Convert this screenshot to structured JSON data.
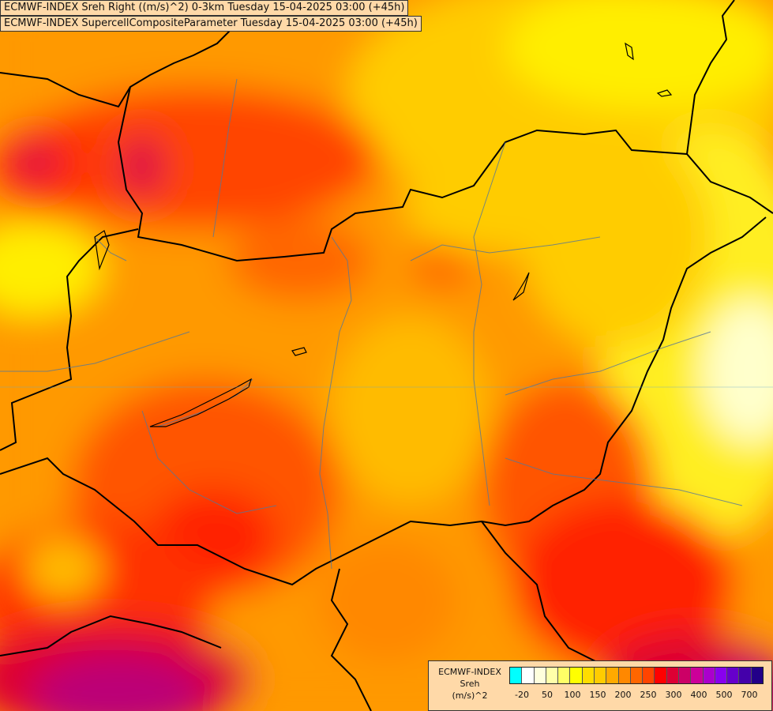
{
  "titles": {
    "line1": "ECMWF-INDEX Sreh Right ((m/s)^2) 0-3km Tuesday 15-04-2025 03:00 (+45h)",
    "line2": "ECMWF-INDEX SupercellCompositeParameter Tuesday 15-04-2025 03:00 (+45h)"
  },
  "legend": {
    "label_line1": "ECMWF-INDEX",
    "label_line2": "Sreh",
    "label_line3": "(m/s)^2",
    "colors": [
      "#00ffff",
      "#ffffff",
      "#ffffdd",
      "#ffffaa",
      "#ffff66",
      "#ffff00",
      "#ffdd00",
      "#ffcc00",
      "#ffaa00",
      "#ff8800",
      "#ff6600",
      "#ff4400",
      "#ff0000",
      "#dd0033",
      "#cc0066",
      "#cc0099",
      "#aa00cc",
      "#8800ee",
      "#6600cc",
      "#4400aa",
      "#220088"
    ],
    "ticks": [
      "-20",
      "50",
      "100",
      "150",
      "200",
      "250",
      "300",
      "400",
      "500",
      "700"
    ]
  }
}
